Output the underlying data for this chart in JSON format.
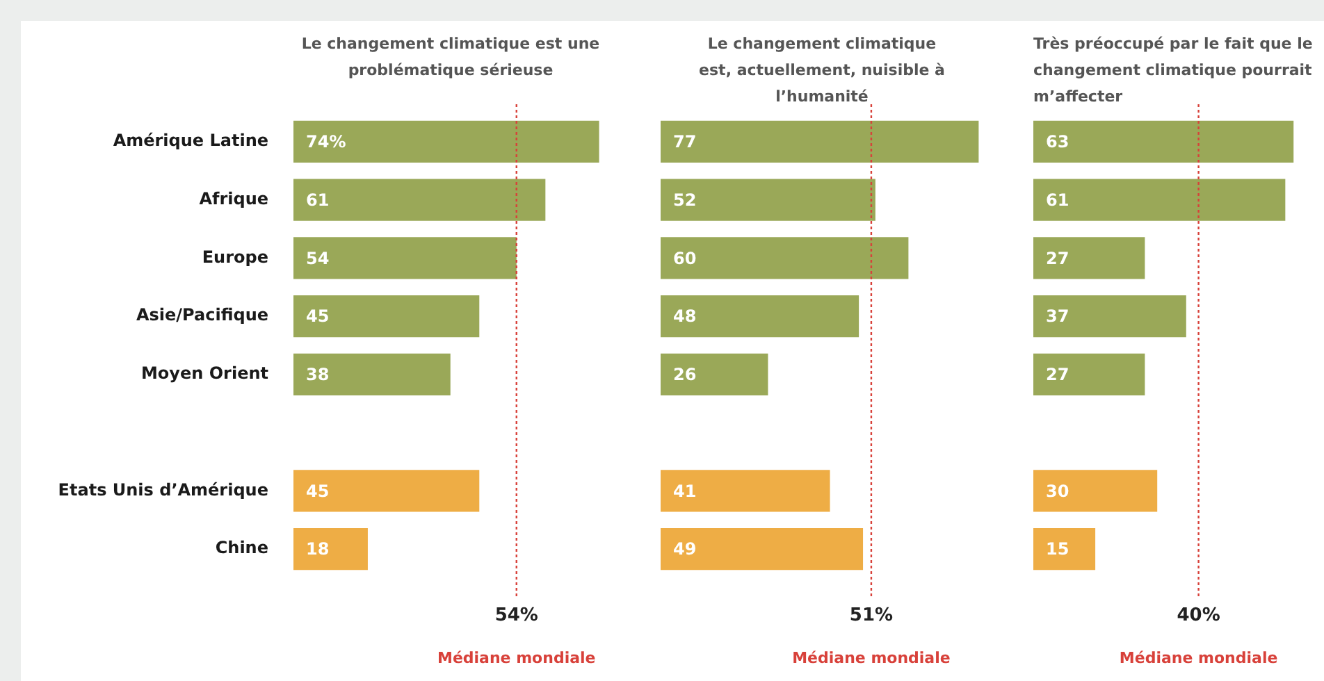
{
  "chart_data": [
    {
      "type": "bar",
      "orientation": "horizontal",
      "title": "Le changement climatique est une problématique sérieuse",
      "categories": [
        "Amérique Latine",
        "Afrique",
        "Europe",
        "Asie/Pacifique",
        "Moyen Orient",
        null,
        "Etats Unis d’Amérique",
        "Chine"
      ],
      "values": [
        74,
        61,
        54,
        45,
        38,
        null,
        45,
        18
      ],
      "value_labels": [
        "74%",
        "61",
        "54",
        "45",
        "38",
        null,
        "45",
        "18"
      ],
      "colors": [
        "#9aa858",
        "#9aa858",
        "#9aa858",
        "#9aa858",
        "#9aa858",
        null,
        "#eead45",
        "#eead45"
      ],
      "tick_labels": "y",
      "ref_lines": [
        {
          "axis": "x",
          "value": 54,
          "label": "54%",
          "color": "#d8413a",
          "line_style": "dotted"
        }
      ],
      "annotations": [
        "Médiane mondiale"
      ]
    },
    {
      "type": "bar",
      "orientation": "horizontal",
      "title": "Le changement climatique est, actuellement, nuisible à l’humanité",
      "categories": [
        null,
        null,
        null,
        null,
        null,
        null,
        null,
        null
      ],
      "values": [
        77,
        52,
        60,
        48,
        26,
        null,
        41,
        49
      ],
      "data_labels": true,
      "colors": [
        "#9aa858",
        "#9aa858",
        "#9aa858",
        "#9aa858",
        "#9aa858",
        null,
        "#eead45",
        "#eead45"
      ],
      "ref_lines": [
        {
          "axis": "x",
          "value": 51,
          "label": "51%",
          "color": "#d8413a",
          "line_style": "dotted"
        }
      ],
      "annotations": [
        "Médiane mondiale"
      ]
    },
    {
      "type": "bar",
      "orientation": "horizontal",
      "title": "Très préoccupé par le fait que le changement climatique pourrait m’affecter",
      "categories": [
        null,
        null,
        null,
        null,
        null,
        null,
        null,
        null
      ],
      "values": [
        63,
        61,
        27,
        37,
        27,
        null,
        30,
        15
      ],
      "data_labels": true,
      "colors": [
        "#9aa858",
        "#9aa858",
        "#9aa858",
        "#9aa858",
        "#9aa858",
        null,
        "#eead45",
        "#eead45"
      ],
      "ref_lines": [
        {
          "axis": "x",
          "value": 40,
          "label": "40%",
          "color": "#d8413a",
          "line_style": "dotted"
        }
      ],
      "annotations": [
        "Médiane mondiale"
      ]
    }
  ]
}
